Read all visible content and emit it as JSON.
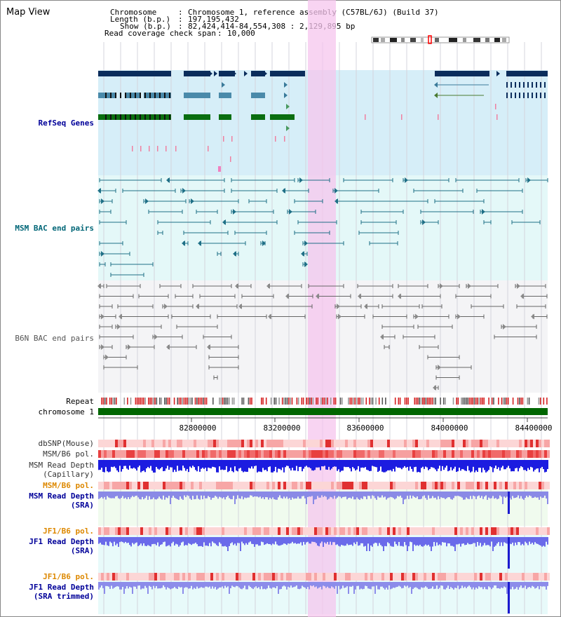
{
  "app": {
    "title": "Map View"
  },
  "info": {
    "chromosome_label": "Chromosome",
    "chromosome_value": "Chromosome 1, reference assembly (C57BL/6J) (Build 37)",
    "length_label": "Length (b.p.)",
    "length_value": "197,195,432",
    "show_label": "Show (b.p.)",
    "show_value": "82,424,414-84,554,308 : 2,129,895 bp",
    "coverage_label": "Read coverage check span",
    "coverage_value": "10,000"
  },
  "tracks": {
    "refseq": "RefSeq Genes",
    "msm_bac": "MSM BAC end pairs",
    "b6n_bac": "B6N BAC end pairs",
    "repeat": "Repeat",
    "chromosome": "chromosome 1",
    "dbsnp": "dbSNP(Mouse)",
    "msm_b6_pol_1": "MSM/B6 pol.",
    "msm_read_depth_cap_1": "MSM Read Depth",
    "msm_read_depth_cap_2": "(Capillary)",
    "msm_b6_pol_2": "MSM/B6 pol.",
    "msm_read_depth_sra_1": "MSM Read Depth",
    "msm_read_depth_sra_2": "(SRA)",
    "jf1_b6_pol_1": "JF1/B6 pol.",
    "jf1_read_depth_sra_1": "JF1 Read Depth",
    "jf1_read_depth_sra_2": "(SRA)",
    "jf1_b6_pol_2": "JF1/B6 pol.",
    "jf1_read_depth_trim_1": "JF1 Read Depth",
    "jf1_read_depth_trim_2": "(SRA trimmed)"
  },
  "axis": {
    "ticks": [
      "82800000",
      "83200000",
      "83600000",
      "84000000",
      "84400000"
    ]
  },
  "colors": {
    "refseq_label": "#000099",
    "msm_label": "#006677",
    "b6n_label": "#555555",
    "orange_label": "#dd8800",
    "blue_label": "#000099",
    "highlight": "#f5c6ee",
    "refseq_bg": "#d6eef8",
    "msm_bg": "#e4f8f8",
    "b6n_bg": "#f4f4f6",
    "chromosome": "#006600"
  }
}
